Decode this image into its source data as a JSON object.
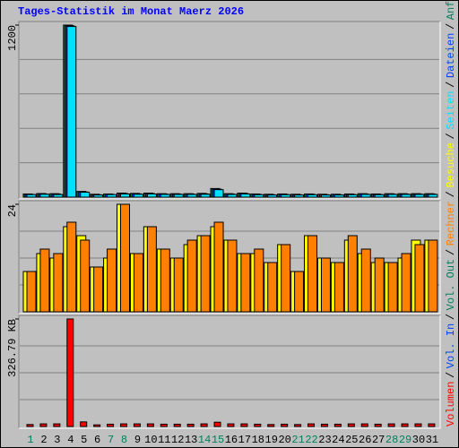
{
  "chart_data": [
    {
      "type": "bar",
      "title": "Tages-Statistik im Monat Maerz 2026",
      "ylim": [
        0,
        1200
      ],
      "yticks": [
        1200
      ],
      "series": [
        {
          "color": "#00805c",
          "values": [
            22,
            25,
            24,
            1200,
            40,
            20,
            22,
            28,
            26,
            28,
            24,
            24,
            24,
            26,
            60,
            24,
            28,
            22,
            20,
            22,
            20,
            22,
            20,
            20,
            22,
            24,
            22,
            24,
            24,
            24,
            24
          ]
        },
        {
          "color": "#0040ff",
          "values": [
            19,
            22,
            21,
            1195,
            36,
            17,
            19,
            25,
            23,
            25,
            21,
            21,
            21,
            23,
            55,
            21,
            25,
            19,
            17,
            19,
            17,
            19,
            17,
            17,
            19,
            21,
            19,
            21,
            21,
            21,
            21
          ]
        },
        {
          "color": "#00e0ff",
          "values": [
            18,
            20,
            18,
            1190,
            34,
            15,
            18,
            22,
            20,
            22,
            19,
            19,
            19,
            20,
            52,
            19,
            22,
            17,
            15,
            17,
            15,
            17,
            15,
            15,
            17,
            19,
            17,
            19,
            19,
            19,
            19
          ]
        }
      ]
    },
    {
      "type": "bar",
      "ylim": [
        0,
        24
      ],
      "yticks": [
        24
      ],
      "series": [
        {
          "color": "#ffff00",
          "values": [
            9,
            13,
            12,
            19,
            17,
            10,
            12,
            24,
            13,
            19,
            14,
            12,
            15,
            17,
            19,
            16,
            13,
            13,
            11,
            15,
            9,
            17,
            12,
            11,
            16,
            13,
            11,
            11,
            12,
            16,
            16
          ]
        },
        {
          "color": "#ff8000",
          "values": [
            9,
            14,
            13,
            20,
            16,
            10,
            14,
            24,
            13,
            19,
            14,
            12,
            16,
            17,
            20,
            16,
            13,
            14,
            11,
            15,
            9,
            17,
            12,
            11,
            17,
            14,
            12,
            11,
            13,
            15,
            16
          ]
        }
      ]
    },
    {
      "type": "bar",
      "ylim": [
        0,
        326.79
      ],
      "yticks": [
        {
          "value": 326.79,
          "label": "326.79 KB"
        }
      ],
      "categories": [
        "1",
        "2",
        "3",
        "4",
        "5",
        "6",
        "7",
        "8",
        "9",
        "10",
        "11",
        "12",
        "13",
        "14",
        "15",
        "16",
        "17",
        "18",
        "19",
        "20",
        "21",
        "22",
        "23",
        "24",
        "25",
        "26",
        "27",
        "28",
        "29",
        "30",
        "31"
      ],
      "category_colors": [
        "#00805c",
        "#000000",
        "#000000",
        "#000000",
        "#000000",
        "#000000",
        "#00805c",
        "#00805c",
        "#000000",
        "#000000",
        "#000000",
        "#000000",
        "#000000",
        "#00805c",
        "#00805c",
        "#000000",
        "#000000",
        "#000000",
        "#000000",
        "#000000",
        "#00805c",
        "#00805c",
        "#000000",
        "#000000",
        "#000000",
        "#000000",
        "#000000",
        "#00805c",
        "#00805c",
        "#000000",
        "#000000"
      ],
      "series": [
        {
          "color": "#ff0000",
          "values": [
            6,
            8,
            8,
            326.79,
            14,
            5,
            7,
            8,
            8,
            8,
            7,
            7,
            7,
            8,
            13,
            8,
            8,
            7,
            6,
            7,
            6,
            8,
            7,
            7,
            8,
            8,
            7,
            8,
            8,
            8,
            8
          ]
        }
      ]
    }
  ],
  "legend": {
    "separator": "/",
    "items": [
      {
        "name": "Volumen",
        "color": "#ff0000"
      },
      {
        "name": "Vol. In",
        "color": "#0040ff"
      },
      {
        "name": "Vol. Out",
        "color": "#00805c"
      },
      {
        "name": "Rechner",
        "color": "#ff8000"
      },
      {
        "name": "Besuche",
        "color": "#ffff00"
      },
      {
        "name": "Seiten",
        "color": "#00e0ff"
      },
      {
        "name": "Dateien",
        "color": "#0040ff"
      },
      {
        "name": "Anfragen",
        "color": "#00805c"
      }
    ]
  }
}
